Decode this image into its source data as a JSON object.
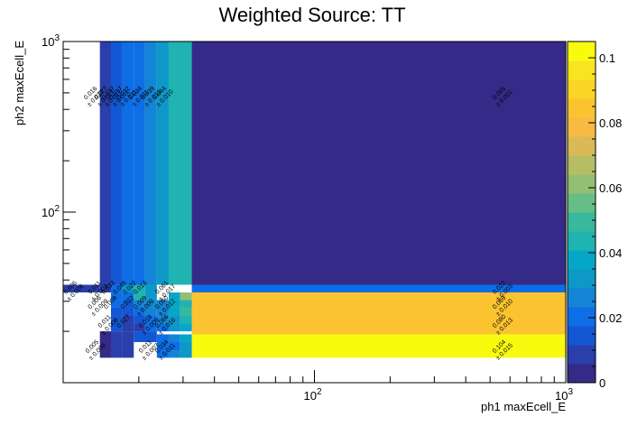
{
  "chart_data": {
    "type": "heatmap",
    "title": "Weighted Source: TT",
    "xlabel": "ph1 maxEcell_E",
    "ylabel": "ph2 maxEcell_E",
    "xscale": "log",
    "yscale": "log",
    "xlim": [
      10,
      1000
    ],
    "ylim": [
      10,
      1000
    ],
    "x_tick_labels": [
      "10^2",
      "10^3"
    ],
    "y_tick_labels": [
      "10^2",
      "10^3"
    ],
    "zlim": [
      0,
      0.105
    ],
    "colorbar_ticks": [
      "0",
      "0.02",
      "0.04",
      "0.06",
      "0.08",
      "0.1"
    ],
    "colormap": [
      "#352a87",
      "#2a3fab",
      "#1357d4",
      "#0d6ee6",
      "#1485d4",
      "#0d98c8",
      "#06a7c6",
      "#1fb3b1",
      "#38b99e",
      "#65be86",
      "#92bf73",
      "#b7bd64",
      "#d9ba56",
      "#f8ba43",
      "#fcc331",
      "#fcd526",
      "#f8e520",
      "#f9fb0e"
    ],
    "background_color": "#1a55cf",
    "cells": [
      {
        "x": [
          15.5,
          17.2
        ],
        "y": [
          20,
          22.2
        ],
        "value": 0.012
      },
      {
        "x": [
          15.5,
          17.2
        ],
        "y": [
          22.2,
          24.8
        ],
        "value": 0.012
      },
      {
        "x": [
          15.5,
          17.2
        ],
        "y": [
          24.8,
          27.5
        ],
        "value": 0.013
      },
      {
        "x": [
          15.5,
          17.2
        ],
        "y": [
          27.5,
          30.5
        ],
        "value": 0.018
      },
      {
        "x": [
          15.5,
          17.2
        ],
        "y": [
          30.5,
          33.8
        ],
        "value": 0.018
      },
      {
        "x": [
          15.5,
          17.2
        ],
        "y": [
          33.8,
          37.5
        ],
        "value": 0.02
      },
      {
        "x": [
          17.2,
          19.1
        ],
        "y": [
          20,
          22.2
        ],
        "value": 0.009
      },
      {
        "x": [
          17.2,
          19.1
        ],
        "y": [
          22.2,
          24.8
        ],
        "value": 0.011
      },
      {
        "x": [
          17.2,
          19.1
        ],
        "y": [
          24.8,
          27.5
        ],
        "value": 0.012
      },
      {
        "x": [
          17.2,
          19.1
        ],
        "y": [
          27.5,
          30.5
        ],
        "value": 0.015
      },
      {
        "x": [
          17.2,
          19.1
        ],
        "y": [
          30.5,
          33.8
        ],
        "value": 0.018
      },
      {
        "x": [
          17.2,
          19.1
        ],
        "y": [
          33.8,
          37.5
        ],
        "value": 0.03
      },
      {
        "x": [
          19.1,
          21.2
        ],
        "y": [
          20,
          22.2
        ],
        "value": 0.011
      },
      {
        "x": [
          19.1,
          21.2
        ],
        "y": [
          22.2,
          24.8
        ],
        "value": 0.013
      },
      {
        "x": [
          19.1,
          21.2
        ],
        "y": [
          24.8,
          27.5
        ],
        "value": 0.022
      },
      {
        "x": [
          19.1,
          21.2
        ],
        "y": [
          27.5,
          30.5
        ],
        "value": 0.025
      },
      {
        "x": [
          19.1,
          21.2
        ],
        "y": [
          30.5,
          33.8
        ],
        "value": 0.042
      },
      {
        "x": [
          19.1,
          21.2
        ],
        "y": [
          33.8,
          37.5
        ],
        "value": 0.041
      },
      {
        "x": [
          21.2,
          23.6
        ],
        "y": [
          20,
          22.2
        ],
        "value": 0.02
      },
      {
        "x": [
          21.2,
          23.6
        ],
        "y": [
          22.2,
          24.8
        ],
        "value": 0.018
      },
      {
        "x": [
          21.2,
          23.6
        ],
        "y": [
          24.8,
          27.5
        ],
        "value": 0.026
      },
      {
        "x": [
          21.2,
          23.6
        ],
        "y": [
          27.5,
          30.5
        ],
        "value": 0.028
      },
      {
        "x": [
          21.2,
          23.6
        ],
        "y": [
          30.5,
          33.8
        ],
        "value": 0.031
      },
      {
        "x": [
          21.2,
          23.6
        ],
        "y": [
          33.8,
          37.5
        ],
        "value": 0.033
      },
      {
        "x": [
          23.6,
          26.3
        ],
        "y": [
          14,
          15.5
        ],
        "value": 0.018
      },
      {
        "x": [
          23.6,
          26.3
        ],
        "y": [
          15.5,
          17.3
        ],
        "value": 0.018
      },
      {
        "x": [
          23.6,
          26.3
        ],
        "y": [
          17.3,
          19.2
        ],
        "value": 0.018
      },
      {
        "x": [
          23.6,
          26.3
        ],
        "y": [
          20,
          22.2
        ],
        "value": 0.022
      },
      {
        "x": [
          23.6,
          26.3
        ],
        "y": [
          22.2,
          24.8
        ],
        "value": 0.024
      },
      {
        "x": [
          23.6,
          26.3
        ],
        "y": [
          24.8,
          27.5
        ],
        "value": 0.026
      },
      {
        "x": [
          23.6,
          26.3
        ],
        "y": [
          27.5,
          30.5
        ],
        "value": 0.028
      },
      {
        "x": [
          26.3,
          29.2
        ],
        "y": [
          14,
          15.5
        ],
        "value": 0.024
      },
      {
        "x": [
          26.3,
          29.2
        ],
        "y": [
          15.5,
          17.3
        ],
        "value": 0.022
      },
      {
        "x": [
          26.3,
          29.2
        ],
        "y": [
          17.3,
          19.2
        ],
        "value": 0.024
      },
      {
        "x": [
          26.3,
          29.2
        ],
        "y": [
          20,
          22.2
        ],
        "value": 0.032
      },
      {
        "x": [
          26.3,
          29.2
        ],
        "y": [
          22.2,
          24.8
        ],
        "value": 0.034
      },
      {
        "x": [
          26.3,
          29.2
        ],
        "y": [
          24.8,
          27.5
        ],
        "value": 0.035
      },
      {
        "x": [
          26.3,
          29.2
        ],
        "y": [
          27.5,
          30.5
        ],
        "value": 0.038
      },
      {
        "x": [
          26.3,
          29.2
        ],
        "y": [
          30.5,
          33.8
        ],
        "value": 0.04
      },
      {
        "x": [
          29.2,
          32.5
        ],
        "y": [
          14,
          15.5
        ],
        "value": 0.031
      },
      {
        "x": [
          29.2,
          32.5
        ],
        "y": [
          15.5,
          17.3
        ],
        "value": 0.034
      },
      {
        "x": [
          29.2,
          32.5
        ],
        "y": [
          17.3,
          19.2
        ],
        "value": 0.037
      },
      {
        "x": [
          29.2,
          32.5
        ],
        "y": [
          20,
          22.2
        ],
        "value": 0.039
      },
      {
        "x": [
          29.2,
          32.5
        ],
        "y": [
          22.2,
          24.8
        ],
        "value": 0.041
      },
      {
        "x": [
          29.2,
          32.5
        ],
        "y": [
          24.8,
          27.5
        ],
        "value": 0.05
      },
      {
        "x": [
          29.2,
          32.5
        ],
        "y": [
          27.5,
          30.5
        ],
        "value": 0.043
      },
      {
        "x": [
          29.2,
          32.5
        ],
        "y": [
          30.5,
          33.8
        ],
        "value": 0.061
      }
    ],
    "annotations": [
      {
        "text": "0.016 ± 0.027",
        "x": 13.0,
        "y": 490
      },
      {
        "text": "0.027 ± 0.017",
        "x": 14.3,
        "y": 490
      },
      {
        "text": "0.037 ± 0.017",
        "x": 15.3,
        "y": 490
      },
      {
        "text": "0.017 ± 0.011",
        "x": 16.4,
        "y": 490
      },
      {
        "text": "0.032 ± 0.011",
        "x": 17.6,
        "y": 490
      },
      {
        "text": "0.034 ± 0.011",
        "x": 19.6,
        "y": 490
      },
      {
        "text": "0.039 ± 0.013",
        "x": 22.0,
        "y": 490
      },
      {
        "text": "0.044 ± 0.010",
        "x": 24.5,
        "y": 490
      },
      {
        "text": "0.005 ± 0.001",
        "x": 550,
        "y": 490
      },
      {
        "text": "0.006 ± 0.006",
        "x": 10.8,
        "y": 35.5
      },
      {
        "text": "0.011 ± 0.003",
        "x": 13.5,
        "y": 35.5
      },
      {
        "text": "0.033",
        "x": 15.3,
        "y": 35.5
      },
      {
        "text": "0.045",
        "x": 17.0,
        "y": 35.5
      },
      {
        "text": "0.022",
        "x": 18.6,
        "y": 35.5
      },
      {
        "text": "0.013",
        "x": 20.5,
        "y": 35.5
      },
      {
        "text": "0.061 ± 0.017",
        "x": 25.0,
        "y": 35.5
      },
      {
        "text": "0.022 ± 0.003",
        "x": 550,
        "y": 35.5
      },
      {
        "text": "0.006 ± 0.009",
        "x": 13.5,
        "y": 29.0
      },
      {
        "text": "0.008",
        "x": 15.6,
        "y": 29.0
      },
      {
        "text": "0.022",
        "x": 18.2,
        "y": 29.0
      },
      {
        "text": "0.009 ± 0.009",
        "x": 20.5,
        "y": 29.0
      },
      {
        "text": "0.050 ± 0.012",
        "x": 25.0,
        "y": 29.0
      },
      {
        "text": "0.069 ± 0.010",
        "x": 550,
        "y": 29.0
      },
      {
        "text": "0.011 ± 0.008",
        "x": 14.8,
        "y": 22.5
      },
      {
        "text": "0.027",
        "x": 17.6,
        "y": 22.5
      },
      {
        "text": "0.018 ± 0.009",
        "x": 21.5,
        "y": 22.5
      },
      {
        "text": "0.066 ± 0.016",
        "x": 25.0,
        "y": 22.5
      },
      {
        "text": "0.080 ± 0.013",
        "x": 550,
        "y": 22.5
      },
      {
        "text": "0.005 ± 0.006",
        "x": 13.2,
        "y": 16.0
      },
      {
        "text": "0.011 ± 0.007",
        "x": 21.5,
        "y": 16.0
      },
      {
        "text": "0.034 ± 0.011",
        "x": 25.0,
        "y": 16.0
      },
      {
        "text": "0.104 ± 0.015",
        "x": 550,
        "y": 16.0
      }
    ],
    "legend": "colorbar-right"
  }
}
